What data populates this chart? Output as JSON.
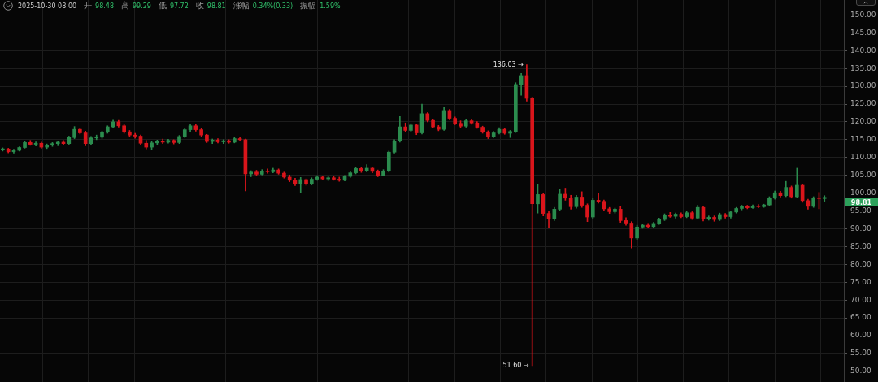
{
  "chart_data": {
    "type": "candlestick",
    "categories": [
      null,
      null,
      null,
      null,
      null,
      null,
      null,
      null,
      null,
      null,
      null,
      null,
      null,
      null,
      null,
      null,
      null,
      null,
      null,
      null,
      null,
      null,
      null,
      null,
      null,
      null,
      null,
      null,
      null,
      null,
      null,
      null,
      null,
      null,
      null,
      null,
      null,
      null,
      null,
      null,
      null,
      null,
      null,
      null,
      null,
      null,
      null,
      null,
      null,
      null,
      null,
      null,
      null,
      null,
      null,
      null,
      null,
      null,
      null,
      null,
      null,
      null,
      null,
      null,
      null,
      null,
      null,
      null,
      null,
      null,
      null,
      null,
      null,
      null,
      null,
      null,
      null,
      null,
      null,
      null,
      null,
      null,
      null,
      null,
      null,
      null,
      null,
      null,
      null,
      null,
      null,
      null,
      null,
      null,
      null,
      null,
      null,
      null,
      null,
      null,
      null,
      null,
      null,
      null,
      null,
      null,
      null,
      null,
      null,
      null,
      null,
      null,
      null,
      null,
      null,
      null,
      null,
      null,
      null,
      null,
      null,
      null,
      null,
      null,
      null,
      null,
      null,
      null,
      null,
      null,
      null,
      null,
      null,
      null,
      null,
      null,
      null,
      null,
      null,
      null,
      null,
      null,
      null,
      null,
      null,
      null,
      null,
      null,
      null,
      null
    ],
    "ohlc": [
      [
        112.2,
        112.7,
        111.8,
        112.4
      ],
      [
        112.4,
        112.6,
        111.3,
        111.6
      ],
      [
        111.6,
        112.3,
        111.2,
        112.0
      ],
      [
        112.0,
        113.0,
        111.8,
        112.8
      ],
      [
        112.8,
        114.6,
        112.6,
        114.2
      ],
      [
        114.2,
        114.8,
        113.4,
        113.7
      ],
      [
        113.7,
        114.4,
        113.2,
        114.0
      ],
      [
        114.0,
        114.3,
        112.6,
        112.9
      ],
      [
        112.9,
        113.8,
        112.5,
        113.5
      ],
      [
        113.5,
        114.2,
        113.1,
        113.9
      ],
      [
        113.9,
        114.5,
        113.3,
        114.3
      ],
      [
        114.3,
        114.8,
        113.6,
        113.9
      ],
      [
        113.9,
        116.0,
        113.7,
        115.6
      ],
      [
        115.6,
        118.7,
        115.3,
        117.9
      ],
      [
        117.9,
        118.2,
        116.6,
        116.9
      ],
      [
        116.9,
        117.4,
        113.3,
        113.9
      ],
      [
        113.9,
        115.9,
        113.6,
        115.5
      ],
      [
        115.5,
        116.3,
        115.0,
        115.7
      ],
      [
        115.7,
        117.4,
        115.4,
        117.1
      ],
      [
        117.1,
        118.9,
        116.8,
        118.6
      ],
      [
        118.6,
        120.5,
        118.3,
        120.0
      ],
      [
        120.0,
        120.4,
        118.5,
        118.9
      ],
      [
        118.9,
        119.2,
        116.8,
        117.2
      ],
      [
        117.2,
        117.6,
        115.8,
        116.3
      ],
      [
        116.3,
        116.8,
        115.4,
        116.0
      ],
      [
        116.0,
        116.3,
        113.5,
        114.0
      ],
      [
        114.0,
        114.8,
        112.4,
        112.9
      ],
      [
        112.9,
        114.5,
        112.3,
        114.1
      ],
      [
        114.1,
        114.9,
        113.6,
        114.6
      ],
      [
        114.6,
        115.2,
        113.9,
        114.3
      ],
      [
        114.3,
        115.1,
        114.0,
        114.8
      ],
      [
        114.8,
        115.0,
        113.8,
        114.2
      ],
      [
        114.2,
        116.2,
        113.9,
        115.9
      ],
      [
        115.9,
        118.2,
        115.6,
        117.8
      ],
      [
        117.8,
        119.4,
        117.3,
        118.9
      ],
      [
        118.9,
        119.3,
        117.4,
        117.8
      ],
      [
        117.8,
        118.1,
        115.9,
        116.3
      ],
      [
        116.3,
        116.5,
        114.2,
        114.5
      ],
      [
        114.5,
        115.2,
        113.9,
        114.9
      ],
      [
        114.9,
        115.3,
        114.1,
        114.4
      ],
      [
        114.4,
        115.0,
        113.9,
        114.7
      ],
      [
        114.7,
        115.0,
        114.0,
        114.3
      ],
      [
        114.3,
        115.6,
        114.1,
        115.3
      ],
      [
        115.3,
        115.8,
        114.6,
        115.0
      ],
      [
        115.0,
        115.2,
        100.6,
        105.4
      ],
      [
        105.4,
        106.3,
        104.6,
        105.9
      ],
      [
        105.9,
        106.4,
        105.0,
        105.3
      ],
      [
        105.3,
        106.6,
        105.1,
        106.2
      ],
      [
        106.2,
        106.8,
        105.6,
        106.0
      ],
      [
        106.0,
        107.0,
        105.7,
        106.5
      ],
      [
        106.5,
        106.8,
        105.3,
        105.6
      ],
      [
        105.6,
        105.9,
        104.2,
        104.5
      ],
      [
        104.5,
        105.1,
        103.2,
        103.6
      ],
      [
        103.6,
        104.2,
        102.1,
        102.5
      ],
      [
        102.5,
        104.4,
        100.1,
        103.8
      ],
      [
        103.8,
        104.0,
        102.2,
        102.6
      ],
      [
        102.6,
        104.3,
        102.3,
        103.9
      ],
      [
        103.9,
        104.9,
        103.6,
        104.5
      ],
      [
        104.5,
        104.8,
        103.7,
        104.0
      ],
      [
        104.0,
        104.6,
        103.5,
        104.3
      ],
      [
        104.3,
        104.7,
        103.6,
        103.9
      ],
      [
        103.9,
        104.5,
        103.3,
        103.6
      ],
      [
        103.6,
        105.0,
        103.4,
        104.7
      ],
      [
        104.7,
        106.0,
        104.4,
        105.7
      ],
      [
        105.7,
        107.2,
        105.4,
        106.9
      ],
      [
        106.9,
        107.3,
        105.8,
        106.2
      ],
      [
        106.2,
        108.0,
        105.9,
        107.0
      ],
      [
        107.0,
        107.3,
        105.7,
        106.1
      ],
      [
        106.1,
        106.5,
        104.6,
        105.0
      ],
      [
        105.0,
        106.6,
        104.8,
        106.2
      ],
      [
        106.2,
        111.8,
        105.9,
        111.5
      ],
      [
        111.5,
        115.0,
        111.2,
        114.6
      ],
      [
        114.6,
        121.5,
        114.3,
        118.6
      ],
      [
        118.6,
        119.7,
        117.2,
        117.6
      ],
      [
        117.6,
        119.5,
        117.2,
        119.1
      ],
      [
        119.1,
        119.4,
        116.4,
        116.9
      ],
      [
        116.9,
        125.0,
        116.6,
        122.3
      ],
      [
        122.3,
        122.6,
        120.0,
        120.4
      ],
      [
        120.4,
        120.7,
        118.3,
        118.6
      ],
      [
        118.6,
        119.0,
        117.5,
        117.9
      ],
      [
        117.9,
        124.0,
        117.6,
        123.2
      ],
      [
        123.2,
        123.5,
        120.6,
        121.0
      ],
      [
        121.0,
        121.4,
        119.2,
        119.6
      ],
      [
        119.6,
        120.3,
        118.4,
        118.8
      ],
      [
        118.8,
        120.8,
        118.5,
        120.3
      ],
      [
        120.3,
        120.6,
        119.3,
        119.7
      ],
      [
        119.7,
        120.1,
        118.2,
        118.5
      ],
      [
        118.5,
        118.8,
        116.8,
        117.2
      ],
      [
        117.2,
        117.5,
        115.3,
        115.8
      ],
      [
        115.8,
        117.3,
        115.6,
        116.9
      ],
      [
        116.9,
        118.4,
        116.6,
        117.9
      ],
      [
        117.9,
        118.3,
        116.5,
        116.8
      ],
      [
        116.8,
        117.6,
        115.6,
        117.3
      ],
      [
        117.3,
        131.0,
        117.0,
        130.5
      ],
      [
        130.5,
        133.6,
        127.5,
        133.0
      ],
      [
        133.0,
        136.03,
        125.8,
        126.6
      ],
      [
        126.6,
        127.0,
        51.6,
        97.0
      ],
      [
        97.0,
        102.4,
        94.4,
        99.6
      ],
      [
        99.6,
        100.0,
        93.6,
        94.3
      ],
      [
        94.3,
        95.0,
        90.4,
        92.8
      ],
      [
        92.8,
        96.0,
        92.3,
        95.5
      ],
      [
        95.5,
        101.0,
        95.2,
        99.7
      ],
      [
        99.7,
        101.4,
        98.0,
        98.6
      ],
      [
        98.6,
        99.4,
        95.5,
        96.2
      ],
      [
        96.2,
        99.4,
        95.8,
        98.9
      ],
      [
        98.9,
        100.4,
        96.0,
        96.6
      ],
      [
        96.6,
        97.0,
        92.0,
        93.3
      ],
      [
        93.3,
        98.6,
        92.8,
        98.0
      ],
      [
        98.0,
        99.9,
        97.2,
        97.7
      ],
      [
        97.7,
        98.1,
        95.2,
        95.6
      ],
      [
        95.6,
        96.0,
        94.3,
        94.8
      ],
      [
        94.8,
        95.8,
        94.4,
        95.5
      ],
      [
        95.5,
        96.3,
        91.8,
        92.3
      ],
      [
        92.3,
        93.1,
        91.0,
        91.6
      ],
      [
        91.6,
        92.0,
        84.6,
        87.4
      ],
      [
        87.4,
        91.0,
        87.0,
        90.5
      ],
      [
        90.5,
        91.4,
        90.1,
        91.0
      ],
      [
        91.0,
        91.5,
        90.2,
        90.6
      ],
      [
        90.6,
        91.8,
        90.3,
        91.5
      ],
      [
        91.5,
        93.0,
        91.2,
        92.6
      ],
      [
        92.6,
        94.2,
        92.3,
        93.8
      ],
      [
        93.8,
        94.6,
        93.2,
        93.5
      ],
      [
        93.5,
        94.4,
        93.0,
        94.1
      ],
      [
        94.1,
        94.5,
        93.1,
        93.4
      ],
      [
        93.4,
        94.9,
        93.1,
        94.5
      ],
      [
        94.5,
        94.8,
        92.6,
        93.0
      ],
      [
        93.0,
        96.6,
        92.8,
        96.0
      ],
      [
        96.0,
        96.3,
        92.2,
        92.8
      ],
      [
        92.8,
        93.6,
        92.4,
        93.2
      ],
      [
        93.2,
        93.6,
        92.1,
        92.6
      ],
      [
        92.6,
        94.4,
        92.3,
        94.0
      ],
      [
        94.0,
        94.3,
        93.0,
        93.4
      ],
      [
        93.4,
        95.0,
        93.0,
        94.7
      ],
      [
        94.7,
        96.0,
        94.4,
        95.7
      ],
      [
        95.7,
        96.6,
        95.3,
        96.3
      ],
      [
        96.3,
        96.6,
        95.6,
        95.9
      ],
      [
        95.9,
        96.7,
        95.7,
        96.4
      ],
      [
        96.4,
        96.8,
        95.9,
        96.2
      ],
      [
        96.2,
        96.9,
        96.0,
        96.7
      ],
      [
        96.7,
        99.0,
        96.5,
        98.6
      ],
      [
        98.6,
        100.6,
        98.3,
        100.1
      ],
      [
        100.1,
        100.5,
        98.9,
        99.3
      ],
      [
        99.3,
        103.3,
        99.0,
        101.6
      ],
      [
        101.6,
        102.0,
        98.6,
        99.0
      ],
      [
        99.0,
        107.0,
        98.8,
        102.2
      ],
      [
        102.2,
        102.6,
        97.4,
        97.9
      ],
      [
        97.9,
        98.3,
        95.5,
        96.3
      ],
      [
        96.3,
        99.0,
        96.0,
        98.6
      ],
      [
        98.6,
        100.2,
        95.6,
        98.48
      ],
      [
        98.48,
        99.29,
        97.72,
        98.81
      ]
    ],
    "colors": [
      "#2b8c4e",
      "#d9151b",
      "#2b8c4e",
      "#2b8c4e",
      "#2b8c4e",
      "#d9151b",
      "#2b8c4e",
      "#d9151b",
      "#2b8c4e",
      "#2b8c4e",
      "#2b8c4e",
      "#d9151b",
      "#2b8c4e",
      "#2b8c4e",
      "#d9151b",
      "#d9151b",
      "#2b8c4e",
      "#2b8c4e",
      "#2b8c4e",
      "#2b8c4e",
      "#2b8c4e",
      "#d9151b",
      "#d9151b",
      "#d9151b",
      "#d9151b",
      "#d9151b",
      "#d9151b",
      "#2b8c4e",
      "#2b8c4e",
      "#d9151b",
      "#2b8c4e",
      "#d9151b",
      "#2b8c4e",
      "#2b8c4e",
      "#2b8c4e",
      "#d9151b",
      "#d9151b",
      "#d9151b",
      "#2b8c4e",
      "#d9151b",
      "#2b8c4e",
      "#d9151b",
      "#2b8c4e",
      "#d9151b",
      "#d9151b",
      "#2b8c4e",
      "#d9151b",
      "#2b8c4e",
      "#d9151b",
      "#2b8c4e",
      "#d9151b",
      "#d9151b",
      "#d9151b",
      "#d9151b",
      "#2b8c4e",
      "#d9151b",
      "#2b8c4e",
      "#2b8c4e",
      "#d9151b",
      "#2b8c4e",
      "#d9151b",
      "#d9151b",
      "#2b8c4e",
      "#2b8c4e",
      "#2b8c4e",
      "#d9151b",
      "#2b8c4e",
      "#d9151b",
      "#d9151b",
      "#2b8c4e",
      "#2b8c4e",
      "#2b8c4e",
      "#2b8c4e",
      "#d9151b",
      "#2b8c4e",
      "#d9151b",
      "#2b8c4e",
      "#d9151b",
      "#d9151b",
      "#d9151b",
      "#2b8c4e",
      "#d9151b",
      "#d9151b",
      "#d9151b",
      "#2b8c4e",
      "#d9151b",
      "#d9151b",
      "#d9151b",
      "#d9151b",
      "#2b8c4e",
      "#2b8c4e",
      "#d9151b",
      "#2b8c4e",
      "#2b8c4e",
      "#2b8c4e",
      "#d9151b",
      "#d9151b",
      "#2b8c4e",
      "#d9151b",
      "#d9151b",
      "#2b8c4e",
      "#2b8c4e",
      "#d9151b",
      "#d9151b",
      "#2b8c4e",
      "#d9151b",
      "#d9151b",
      "#2b8c4e",
      "#d9151b",
      "#d9151b",
      "#d9151b",
      "#2b8c4e",
      "#d9151b",
      "#d9151b",
      "#d9151b",
      "#2b8c4e",
      "#2b8c4e",
      "#d9151b",
      "#2b8c4e",
      "#2b8c4e",
      "#2b8c4e",
      "#d9151b",
      "#2b8c4e",
      "#d9151b",
      "#2b8c4e",
      "#d9151b",
      "#2b8c4e",
      "#d9151b",
      "#2b8c4e",
      "#d9151b",
      "#2b8c4e",
      "#d9151b",
      "#2b8c4e",
      "#2b8c4e",
      "#2b8c4e",
      "#d9151b",
      "#2b8c4e",
      "#d9151b",
      "#2b8c4e",
      "#2b8c4e",
      "#2b8c4e",
      "#d9151b",
      "#2b8c4e",
      "#d9151b",
      "#2b8c4e",
      "#d9151b",
      "#d9151b",
      "#2b8c4e",
      "#d9151b",
      "#2b8c4e"
    ],
    "ylim": [
      47,
      154.2
    ],
    "yticks": [
      {
        "value": 50,
        "label": "50.00"
      },
      {
        "value": 55,
        "label": "55.00"
      },
      {
        "value": 60,
        "label": "60.00"
      },
      {
        "value": 65,
        "label": "65.00"
      },
      {
        "value": 70,
        "label": "70.00"
      },
      {
        "value": 75,
        "label": "75.00"
      },
      {
        "value": 80,
        "label": "80.00"
      },
      {
        "value": 85,
        "label": "85.00"
      },
      {
        "value": 90,
        "label": "90.00"
      },
      {
        "value": 95,
        "label": "95.00"
      },
      {
        "value": 100,
        "label": "100.00"
      },
      {
        "value": 105,
        "label": "105.00"
      },
      {
        "value": 110,
        "label": "110.00"
      },
      {
        "value": 115,
        "label": "115.00"
      },
      {
        "value": 120,
        "label": "120.00"
      },
      {
        "value": 125,
        "label": "125.00"
      },
      {
        "value": 130,
        "label": "130.00"
      },
      {
        "value": 135,
        "label": "135.00"
      },
      {
        "value": 140,
        "label": "140.00"
      },
      {
        "value": 145,
        "label": "145.00"
      },
      {
        "value": 150,
        "label": "150.00"
      }
    ],
    "tick_labels": "y",
    "grid": true,
    "ref_lines": [
      {
        "axis": "y",
        "value": 98.81,
        "label": "98.81",
        "color": "#2da15b",
        "line_style": "dashed"
      }
    ],
    "annotations": [
      "2025-10-30 08:00",
      "开",
      "98.48",
      "高",
      "99.29",
      "低",
      "97.72",
      "收",
      "98.81",
      "涨幅",
      "0.34%(0.33)",
      "振幅",
      "1.59%",
      "136.03 →",
      "51.60 →"
    ]
  }
}
